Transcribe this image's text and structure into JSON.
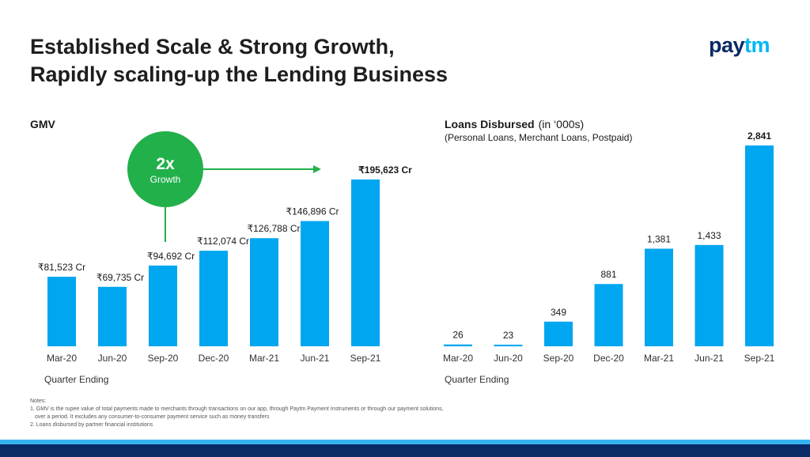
{
  "header": {
    "title_line1": "Established Scale & Strong Growth,",
    "title_line2": "Rapidly scaling-up the Lending Business",
    "logo_pay": "pay",
    "logo_tm": "tm"
  },
  "colors": {
    "bar": "#00a6ef",
    "green": "#22b04b",
    "dark_blue": "#0b2a66",
    "light_blue": "#37b4f0"
  },
  "callout": {
    "big": "2x",
    "small": "Growth"
  },
  "chart_data": [
    {
      "type": "bar",
      "title": "GMV",
      "xlabel": "Quarter Ending",
      "categories": [
        "Mar-20",
        "Jun-20",
        "Sep-20",
        "Dec-20",
        "Mar-21",
        "Jun-21",
        "Sep-21"
      ],
      "values": [
        81523,
        69735,
        94692,
        112074,
        126788,
        146896,
        195623
      ],
      "data_labels": [
        "₹81,523 Cr",
        "₹69,735 Cr",
        "₹94,692 Cr",
        "₹112,074 Cr",
        "₹126,788 Cr",
        "₹146,896 Cr",
        "₹195,623 Cr"
      ],
      "unit": "₹ Cr"
    },
    {
      "type": "bar",
      "title": "Loans Disbursed",
      "title_suffix": "(in ‘000s)",
      "subtitle": "(Personal Loans, Merchant Loans, Postpaid)",
      "xlabel": "Quarter Ending",
      "categories": [
        "Mar-20",
        "Jun-20",
        "Sep-20",
        "Dec-20",
        "Mar-21",
        "Jun-21",
        "Sep-21"
      ],
      "values": [
        26,
        23,
        349,
        881,
        1381,
        1433,
        2841
      ],
      "data_labels": [
        "26",
        "23",
        "349",
        "881",
        "1,381",
        "1,433",
        "2,841"
      ]
    }
  ],
  "notes": {
    "heading": "Notes:",
    "line1": "1. GMV is the rupee value of total payments made to merchants through transactions on our app, through Paytm Payment Instruments or through our payment solutions,",
    "line2": "over a period. It excludes any consumer-to-consumer payment service such as money transfers",
    "line3": "2. Loans disbursed by partner financial institutions"
  }
}
